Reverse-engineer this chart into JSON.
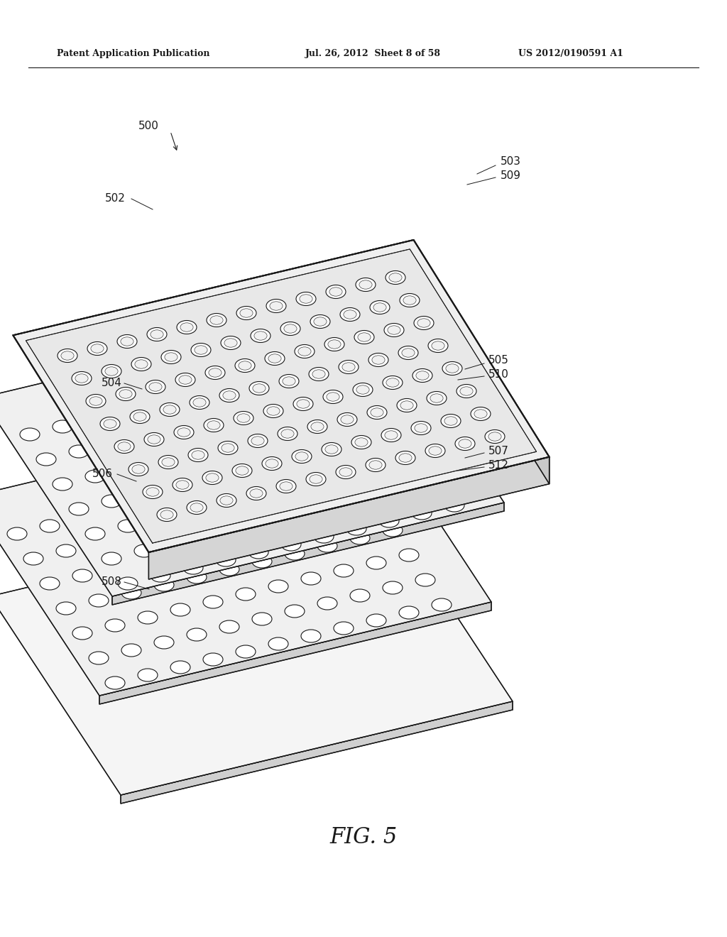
{
  "header_left": "Patent Application Publication",
  "header_mid": "Jul. 26, 2012  Sheet 8 of 58",
  "header_right": "US 2012/0190591 A1",
  "figure_label": "FIG. 5",
  "bg_color": "#ffffff",
  "line_color": "#1a1a1a",
  "plate_fc": "#f2f2f2",
  "sheet_fc": "#f5f5f5",
  "well_fc": "#ffffff",
  "side_fc": "#d0d0d0",
  "inner_fc": "#e5e5e5"
}
